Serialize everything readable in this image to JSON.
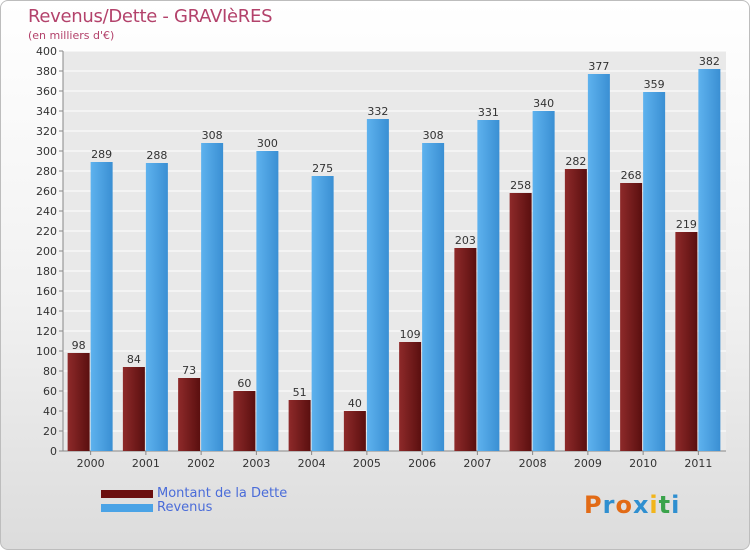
{
  "title": "Revenus/Dette - GRAVIèRES",
  "subtitle": "(en milliers d'€)",
  "colors": {
    "debt": "#7a1f1f",
    "revenue": "#4a9ee0",
    "title": "#b3426b",
    "legend_text": "#4a6cd9"
  },
  "legend": [
    {
      "label": "Montant de la Dette",
      "color": "#6b0f0f"
    },
    {
      "label": "Revenus",
      "color": "#4aa3e6"
    }
  ],
  "logo": {
    "letters": [
      "P",
      "r",
      "o",
      "x",
      "i",
      "t",
      "i"
    ],
    "colors": [
      "#e26b16",
      "#2f8fd0",
      "#e26b16",
      "#2f8fd0",
      "#f2b51b",
      "#3aa34b",
      "#2f8fd0"
    ]
  },
  "chart_data": {
    "type": "bar",
    "categories": [
      "2000",
      "2001",
      "2002",
      "2003",
      "2004",
      "2005",
      "2006",
      "2007",
      "2008",
      "2009",
      "2010",
      "2011"
    ],
    "series": [
      {
        "name": "Montant de la Dette",
        "values": [
          98,
          84,
          73,
          60,
          51,
          40,
          109,
          203,
          258,
          282,
          268,
          219
        ]
      },
      {
        "name": "Revenus",
        "values": [
          289,
          288,
          308,
          300,
          275,
          332,
          308,
          331,
          340,
          377,
          359,
          382
        ]
      }
    ],
    "ylim": [
      0,
      400
    ],
    "ytick_step": 20,
    "grid": true,
    "legend_position": "bottom-left"
  }
}
